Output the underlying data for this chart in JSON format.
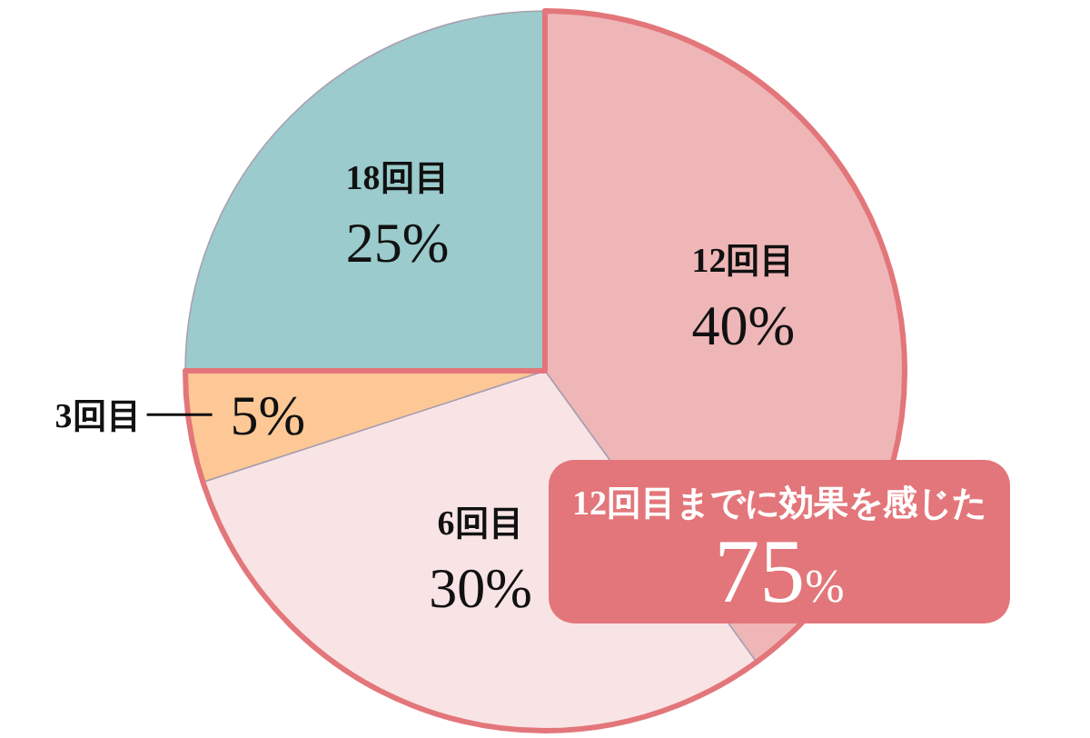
{
  "chart_data": {
    "type": "pie",
    "categories": [
      "12回目",
      "6回目",
      "3回目",
      "18回目"
    ],
    "values": [
      40,
      30,
      5,
      25
    ],
    "value_labels": [
      "40%",
      "30%",
      "5%",
      "25%"
    ],
    "colors": [
      "#efb6b7",
      "#f9e4e5",
      "#fdc896",
      "#9bcbcc"
    ],
    "annotations": [
      "12回目までに効果を感じた\n75%"
    ]
  }
}
